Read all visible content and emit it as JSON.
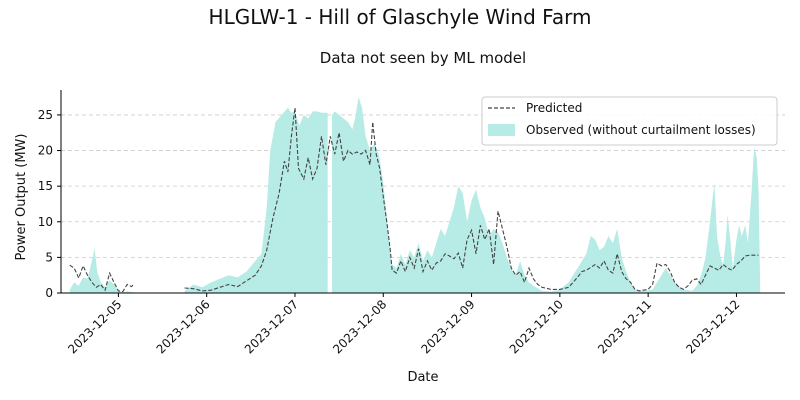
{
  "chart_data": {
    "type": "area",
    "title": "HLGLW-1 - Hill of Glaschyle Wind Farm",
    "subtitle": "Data not seen by ML model",
    "xlabel": "Date",
    "ylabel": "Power Output (MW)",
    "xlim": [
      4.35,
      12.55
    ],
    "ylim": [
      0,
      28.5
    ],
    "x_ticks": [
      5,
      6,
      7,
      8,
      9,
      10,
      11,
      12
    ],
    "x_tick_labels": [
      "2023-12-05",
      "2023-12-06",
      "2023-12-07",
      "2023-12-08",
      "2023-12-09",
      "2023-12-10",
      "2023-12-11",
      "2023-12-12"
    ],
    "y_ticks": [
      0,
      5,
      10,
      15,
      20,
      25
    ],
    "y_tick_labels": [
      "0",
      "5",
      "10",
      "15",
      "20",
      "25"
    ],
    "grid": "y-dashed",
    "legend_position": "top-right",
    "colors": {
      "observed": "#b7ebe6",
      "predicted": "#444444",
      "grid": "#cccccc"
    },
    "series": [
      {
        "name": "Predicted",
        "style": "dashed-line",
        "segments": [
          [
            [
              4.45,
              3.9
            ],
            [
              4.5,
              3.5
            ],
            [
              4.55,
              2.1
            ],
            [
              4.6,
              3.8
            ],
            [
              4.65,
              2.5
            ],
            [
              4.7,
              1.5
            ],
            [
              4.75,
              0.8
            ],
            [
              4.8,
              1.2
            ],
            [
              4.85,
              0.4
            ],
            [
              4.9,
              2.8
            ],
            [
              4.95,
              1.5
            ],
            [
              5.0,
              0.3
            ],
            [
              5.05,
              0.2
            ],
            [
              5.1,
              1.2
            ],
            [
              5.15,
              0.9
            ],
            [
              5.18,
              1.3
            ]
          ],
          [
            [
              5.75,
              0.7
            ],
            [
              5.85,
              0.6
            ],
            [
              5.95,
              0.3
            ],
            [
              6.05,
              0.4
            ],
            [
              6.15,
              0.8
            ],
            [
              6.25,
              1.2
            ],
            [
              6.35,
              0.9
            ],
            [
              6.45,
              1.7
            ],
            [
              6.55,
              2.5
            ],
            [
              6.62,
              3.8
            ],
            [
              6.68,
              6.0
            ],
            [
              6.75,
              10.5
            ],
            [
              6.82,
              14.0
            ],
            [
              6.88,
              18.5
            ],
            [
              6.92,
              17.0
            ],
            [
              6.96,
              22.0
            ],
            [
              7.0,
              26.0
            ],
            [
              7.04,
              17.5
            ],
            [
              7.1,
              16.0
            ],
            [
              7.15,
              19.0
            ],
            [
              7.2,
              16.0
            ],
            [
              7.25,
              17.5
            ],
            [
              7.3,
              22.0
            ],
            [
              7.35,
              18.0
            ],
            [
              7.4,
              22.0
            ],
            [
              7.45,
              19.5
            ],
            [
              7.5,
              22.5
            ],
            [
              7.55,
              18.5
            ],
            [
              7.6,
              20.0
            ],
            [
              7.65,
              19.5
            ],
            [
              7.7,
              19.8
            ],
            [
              7.75,
              19.5
            ],
            [
              7.8,
              20.0
            ],
            [
              7.85,
              18.0
            ],
            [
              7.88,
              24.0
            ],
            [
              7.92,
              19.5
            ],
            [
              7.96,
              17.5
            ],
            [
              8.0,
              13.5
            ],
            [
              8.04,
              10.0
            ],
            [
              8.08,
              6.0
            ],
            [
              8.1,
              3.2
            ],
            [
              8.15,
              2.8
            ],
            [
              8.2,
              4.5
            ],
            [
              8.25,
              3.0
            ],
            [
              8.3,
              5.0
            ],
            [
              8.35,
              3.5
            ],
            [
              8.4,
              6.2
            ],
            [
              8.45,
              3.0
            ],
            [
              8.5,
              4.5
            ],
            [
              8.55,
              3.2
            ],
            [
              8.6,
              4.2
            ],
            [
              8.65,
              4.5
            ],
            [
              8.7,
              5.5
            ],
            [
              8.75,
              5.2
            ],
            [
              8.8,
              4.8
            ],
            [
              8.85,
              5.6
            ],
            [
              8.9,
              3.5
            ],
            [
              8.95,
              7.5
            ],
            [
              9.0,
              8.8
            ],
            [
              9.05,
              5.5
            ],
            [
              9.1,
              9.5
            ],
            [
              9.15,
              7.5
            ],
            [
              9.2,
              9.0
            ],
            [
              9.25,
              4.0
            ],
            [
              9.3,
              11.5
            ],
            [
              9.35,
              9.0
            ],
            [
              9.4,
              6.5
            ],
            [
              9.45,
              3.5
            ],
            [
              9.5,
              2.5
            ],
            [
              9.55,
              3.0
            ],
            [
              9.6,
              1.5
            ],
            [
              9.65,
              3.5
            ],
            [
              9.7,
              2.0
            ],
            [
              9.75,
              1.2
            ],
            [
              9.8,
              0.8
            ],
            [
              9.9,
              0.5
            ],
            [
              10.0,
              0.5
            ],
            [
              10.1,
              0.8
            ],
            [
              10.15,
              1.5
            ],
            [
              10.2,
              2.2
            ],
            [
              10.25,
              3.0
            ],
            [
              10.3,
              3.2
            ],
            [
              10.35,
              3.6
            ],
            [
              10.4,
              4.0
            ],
            [
              10.45,
              3.5
            ],
            [
              10.5,
              4.5
            ],
            [
              10.55,
              3.2
            ],
            [
              10.6,
              2.8
            ],
            [
              10.65,
              5.5
            ],
            [
              10.7,
              3.0
            ],
            [
              10.75,
              2.0
            ],
            [
              10.8,
              1.5
            ],
            [
              10.85,
              0.5
            ],
            [
              10.9,
              0.3
            ],
            [
              11.0,
              0.5
            ],
            [
              11.05,
              1.2
            ],
            [
              11.1,
              4.2
            ],
            [
              11.15,
              3.8
            ],
            [
              11.2,
              4.0
            ],
            [
              11.25,
              3.0
            ],
            [
              11.3,
              1.5
            ],
            [
              11.35,
              0.8
            ],
            [
              11.4,
              0.5
            ],
            [
              11.45,
              1.0
            ],
            [
              11.5,
              1.8
            ],
            [
              11.55,
              2.0
            ],
            [
              11.6,
              1.2
            ],
            [
              11.65,
              2.5
            ],
            [
              11.7,
              3.8
            ],
            [
              11.75,
              3.5
            ],
            [
              11.8,
              3.2
            ],
            [
              11.85,
              4.0
            ],
            [
              11.9,
              3.5
            ],
            [
              11.95,
              3.2
            ],
            [
              12.0,
              4.0
            ],
            [
              12.05,
              4.5
            ],
            [
              12.1,
              5.2
            ],
            [
              12.15,
              5.3
            ],
            [
              12.2,
              5.3
            ],
            [
              12.25,
              5.3
            ]
          ]
        ]
      },
      {
        "name": "Observed (without curtailment losses)",
        "style": "filled-area",
        "segments": [
          [
            [
              4.45,
              0.5
            ],
            [
              4.5,
              1.5
            ],
            [
              4.55,
              1.0
            ],
            [
              4.6,
              2.2
            ],
            [
              4.65,
              2.0
            ],
            [
              4.7,
              4.5
            ],
            [
              4.73,
              6.3
            ],
            [
              4.76,
              3.0
            ],
            [
              4.8,
              1.5
            ],
            [
              4.85,
              0.8
            ],
            [
              4.9,
              1.8
            ],
            [
              4.95,
              1.2
            ],
            [
              5.0,
              0.3
            ],
            [
              5.05,
              0.1
            ],
            [
              5.1,
              0.2
            ],
            [
              5.18,
              0.1
            ]
          ],
          [
            [
              5.75,
              0.3
            ],
            [
              5.85,
              1.2
            ],
            [
              5.95,
              0.8
            ],
            [
              6.05,
              1.5
            ],
            [
              6.15,
              2.0
            ],
            [
              6.25,
              2.5
            ],
            [
              6.35,
              2.2
            ],
            [
              6.45,
              3.0
            ],
            [
              6.55,
              4.5
            ],
            [
              6.62,
              5.5
            ],
            [
              6.68,
              12.0
            ],
            [
              6.72,
              20.0
            ],
            [
              6.78,
              24.0
            ],
            [
              6.85,
              25.0
            ],
            [
              6.92,
              26.0
            ],
            [
              6.96,
              25.3
            ],
            [
              7.0,
              25.5
            ],
            [
              7.05,
              23.5
            ],
            [
              7.1,
              25.0
            ],
            [
              7.15,
              24.5
            ],
            [
              7.2,
              25.5
            ],
            [
              7.25,
              25.5
            ],
            [
              7.3,
              25.3
            ],
            [
              7.35,
              25.3
            ],
            [
              7.37,
              25.3
            ]
          ],
          [
            [
              7.42,
              25.0
            ],
            [
              7.45,
              25.5
            ],
            [
              7.5,
              25.0
            ],
            [
              7.55,
              24.5
            ],
            [
              7.6,
              24.0
            ],
            [
              7.65,
              23.0
            ],
            [
              7.68,
              24.5
            ],
            [
              7.72,
              27.5
            ],
            [
              7.76,
              26.0
            ],
            [
              7.8,
              22.0
            ],
            [
              7.85,
              20.0
            ],
            [
              7.9,
              21.0
            ],
            [
              7.95,
              19.5
            ],
            [
              8.0,
              15.5
            ],
            [
              8.04,
              10.5
            ],
            [
              8.08,
              6.0
            ],
            [
              8.1,
              4.0
            ],
            [
              8.15,
              3.5
            ],
            [
              8.2,
              5.5
            ],
            [
              8.25,
              4.0
            ],
            [
              8.3,
              6.0
            ],
            [
              8.35,
              5.0
            ],
            [
              8.4,
              7.0
            ],
            [
              8.45,
              4.5
            ],
            [
              8.5,
              6.0
            ],
            [
              8.55,
              5.0
            ],
            [
              8.6,
              7.0
            ],
            [
              8.65,
              9.0
            ],
            [
              8.7,
              8.0
            ],
            [
              8.75,
              10.0
            ],
            [
              8.8,
              12.0
            ],
            [
              8.85,
              15.0
            ],
            [
              8.9,
              14.0
            ],
            [
              8.95,
              10.0
            ],
            [
              9.0,
              13.0
            ],
            [
              9.05,
              14.5
            ],
            [
              9.1,
              12.0
            ],
            [
              9.15,
              10.5
            ],
            [
              9.2,
              8.0
            ],
            [
              9.25,
              9.0
            ],
            [
              9.3,
              8.5
            ],
            [
              9.35,
              7.0
            ],
            [
              9.4,
              5.0
            ],
            [
              9.45,
              3.5
            ],
            [
              9.5,
              2.5
            ],
            [
              9.55,
              4.5
            ],
            [
              9.6,
              2.5
            ],
            [
              9.65,
              1.5
            ],
            [
              9.7,
              1.0
            ],
            [
              9.8,
              0.3
            ],
            [
              9.9,
              0.2
            ],
            [
              10.0,
              0.5
            ],
            [
              10.05,
              1.0
            ],
            [
              10.1,
              1.5
            ],
            [
              10.15,
              2.5
            ],
            [
              10.2,
              3.5
            ],
            [
              10.25,
              4.5
            ],
            [
              10.3,
              5.5
            ],
            [
              10.35,
              8.0
            ],
            [
              10.4,
              7.5
            ],
            [
              10.45,
              6.0
            ],
            [
              10.5,
              6.5
            ],
            [
              10.55,
              8.0
            ],
            [
              10.6,
              7.0
            ],
            [
              10.65,
              9.0
            ],
            [
              10.7,
              5.0
            ],
            [
              10.75,
              3.0
            ],
            [
              10.8,
              1.5
            ],
            [
              10.85,
              0.5
            ],
            [
              10.95,
              0.3
            ],
            [
              11.05,
              0.5
            ],
            [
              11.1,
              1.5
            ],
            [
              11.15,
              2.5
            ],
            [
              11.2,
              3.5
            ],
            [
              11.25,
              2.5
            ],
            [
              11.3,
              1.5
            ],
            [
              11.35,
              1.0
            ],
            [
              11.4,
              0.5
            ],
            [
              11.5,
              0.3
            ],
            [
              11.55,
              1.0
            ],
            [
              11.6,
              2.5
            ],
            [
              11.65,
              5.0
            ],
            [
              11.7,
              10.0
            ],
            [
              11.75,
              15.5
            ],
            [
              11.78,
              8.0
            ],
            [
              11.82,
              5.0
            ],
            [
              11.85,
              4.0
            ],
            [
              11.88,
              7.5
            ],
            [
              11.9,
              11.0
            ],
            [
              11.93,
              7.5
            ],
            [
              11.96,
              3.5
            ],
            [
              12.0,
              7.5
            ],
            [
              12.03,
              9.5
            ],
            [
              12.06,
              8.0
            ],
            [
              12.1,
              9.5
            ],
            [
              12.13,
              7.0
            ],
            [
              12.17,
              14.0
            ],
            [
              12.2,
              20.5
            ],
            [
              12.23,
              19.0
            ],
            [
              12.25,
              14.5
            ],
            [
              12.27,
              0.2
            ]
          ]
        ]
      }
    ]
  }
}
